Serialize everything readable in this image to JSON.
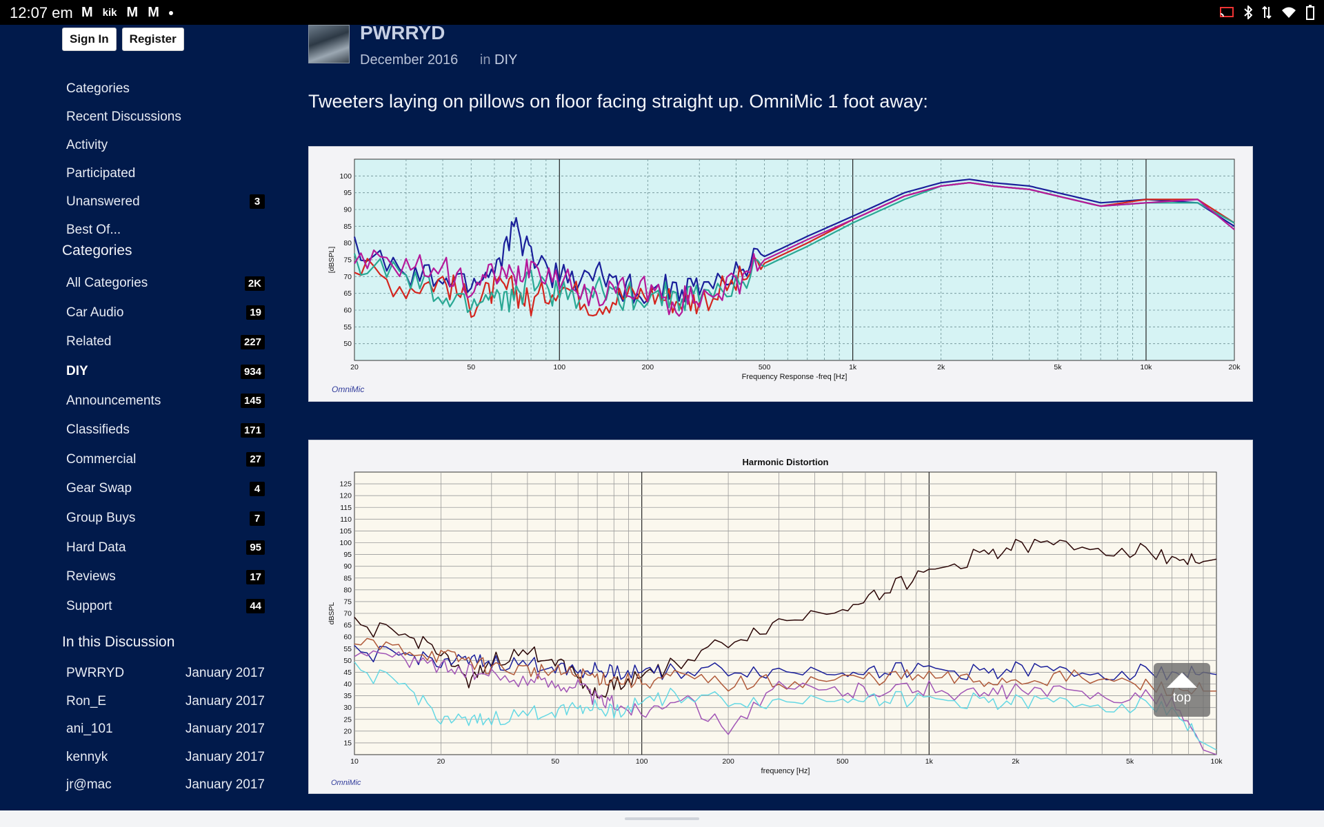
{
  "status_bar": {
    "time": "12:07 em",
    "left_icons": [
      "gmail-icon",
      "kik-icon",
      "gmail-icon",
      "gmail-icon",
      "dot-icon"
    ],
    "left_glyphs": [
      "M",
      "kik",
      "M",
      "M"
    ],
    "right_icons": [
      "cast-icon",
      "bluetooth-icon",
      "signal-icon",
      "wifi-icon",
      "battery-icon"
    ]
  },
  "auth": {
    "sign_in": "Sign In",
    "register": "Register"
  },
  "nav": [
    {
      "label": "Categories"
    },
    {
      "label": "Recent Discussions"
    },
    {
      "label": "Activity"
    },
    {
      "label": "Participated"
    },
    {
      "label": "Unanswered",
      "count": "3"
    },
    {
      "label": "Best Of..."
    }
  ],
  "categories": {
    "heading": "Categories",
    "items": [
      {
        "label": "All Categories",
        "count": "2K"
      },
      {
        "label": "Car Audio",
        "count": "19"
      },
      {
        "label": "Related",
        "count": "227"
      },
      {
        "label": "DIY",
        "count": "934",
        "active": true
      },
      {
        "label": "Announcements",
        "count": "145"
      },
      {
        "label": "Classifieds",
        "count": "171"
      },
      {
        "label": "Commercial",
        "count": "27"
      },
      {
        "label": "Gear Swap",
        "count": "4"
      },
      {
        "label": "Group Buys",
        "count": "7"
      },
      {
        "label": "Hard Data",
        "count": "95"
      },
      {
        "label": "Reviews",
        "count": "17"
      },
      {
        "label": "Support",
        "count": "44"
      }
    ]
  },
  "discussion": {
    "heading": "In this Discussion",
    "items": [
      {
        "user": "PWRRYD",
        "date": "January 2017"
      },
      {
        "user": "Ron_E",
        "date": "January 2017"
      },
      {
        "user": "ani_101",
        "date": "January 2017"
      },
      {
        "user": "kennyk",
        "date": "January 2017"
      },
      {
        "user": "jr@mac",
        "date": "January 2017"
      }
    ]
  },
  "post": {
    "author": "PWRRYD",
    "date": "December 2016",
    "in_label": "in",
    "category": "DIY",
    "text": "Tweeters laying on pillows on floor facing straight up.  OmniMic 1 foot away:"
  },
  "top_button": {
    "label": "top"
  },
  "colors": {
    "page_bg": "#011a4b",
    "chart1_bg": "#d6f3f4",
    "chart2_bg": "#fbf8ee",
    "blue": "#1a1f9a",
    "red": "#d4261f",
    "teal": "#2aa894",
    "magenta": "#b5199a",
    "dark": "#2a0505",
    "cyan": "#65d8e4",
    "purple": "#a155b6",
    "brown": "#b05a3a"
  },
  "chart_data": [
    {
      "type": "line",
      "title": "",
      "xlabel": "Frequency Response -freq [Hz]",
      "ylabel": "[dBSPL]",
      "watermark": "OmniMic",
      "x_scale": "log",
      "xlim": [
        20,
        20000
      ],
      "ylim": [
        45,
        105
      ],
      "xticks": [
        20,
        50,
        100,
        200,
        500,
        1000,
        2000,
        5000,
        10000,
        20000
      ],
      "xtick_labels": [
        "20",
        "50",
        "100",
        "200",
        "500",
        "1k",
        "2k",
        "5k",
        "10k",
        "20k"
      ],
      "yticks": [
        50,
        55,
        60,
        65,
        70,
        75,
        80,
        85,
        90,
        95,
        100
      ],
      "x": [
        20,
        30,
        40,
        50,
        60,
        70,
        80,
        100,
        130,
        160,
        200,
        250,
        300,
        400,
        500,
        700,
        1000,
        1500,
        2000,
        2500,
        3000,
        4000,
        5000,
        7000,
        10000,
        15000,
        20000
      ],
      "series": [
        {
          "color": "blue",
          "values": [
            79,
            70,
            69,
            68,
            72,
            84,
            77,
            69,
            71,
            67,
            66,
            67,
            66,
            71,
            76,
            82,
            88,
            95,
            98,
            99,
            98,
            97,
            95,
            92,
            93,
            92,
            85
          ]
        },
        {
          "color": "red",
          "values": [
            73,
            67,
            69,
            62,
            66,
            66,
            62,
            68,
            62,
            64,
            65,
            63,
            63,
            68,
            74,
            80,
            87,
            94,
            97,
            98,
            97,
            96,
            94,
            91,
            93,
            93,
            86
          ]
        },
        {
          "color": "teal",
          "values": [
            74,
            70,
            63,
            62,
            65,
            62,
            70,
            64,
            66,
            64,
            65,
            64,
            64,
            67,
            73,
            79,
            86,
            93,
            97,
            98,
            97,
            96,
            94,
            91,
            92,
            92,
            86
          ]
        },
        {
          "color": "magenta",
          "values": [
            75,
            72,
            72,
            67,
            70,
            69,
            74,
            69,
            65,
            66,
            66,
            62,
            64,
            68,
            75,
            81,
            87,
            94,
            97,
            98,
            97,
            96,
            94,
            91,
            92,
            93,
            84
          ]
        }
      ]
    },
    {
      "type": "line",
      "title": "Harmonic Distortion",
      "xlabel": "frequency [Hz]",
      "ylabel": "dBSPL",
      "watermark": "OmniMic",
      "x_scale": "log",
      "xlim": [
        10,
        10000
      ],
      "ylim": [
        10,
        130
      ],
      "xticks": [
        10,
        20,
        50,
        100,
        200,
        500,
        1000,
        2000,
        5000,
        10000
      ],
      "xtick_labels": [
        "10",
        "20",
        "50",
        "100",
        "200",
        "500",
        "1k",
        "2k",
        "5k",
        "10k"
      ],
      "yticks": [
        15,
        20,
        25,
        30,
        35,
        40,
        45,
        50,
        55,
        60,
        65,
        70,
        75,
        80,
        85,
        90,
        95,
        100,
        105,
        110,
        115,
        120,
        125
      ],
      "x": [
        10,
        15,
        20,
        25,
        30,
        40,
        50,
        60,
        70,
        80,
        100,
        130,
        200,
        300,
        500,
        700,
        1000,
        1500,
        2000,
        3000,
        5000,
        7000,
        9000,
        10000
      ],
      "series": [
        {
          "color": "dark",
          "values": [
            65,
            60,
            55,
            39,
            50,
            53,
            51,
            44,
            34,
            40,
            44,
            48,
            58,
            66,
            73,
            80,
            87,
            95,
            98,
            99,
            97,
            94,
            92,
            93
          ]
        },
        {
          "color": "blue",
          "values": [
            53,
            52,
            50,
            49,
            49,
            48,
            48,
            46,
            46,
            45,
            46,
            45,
            46,
            45,
            46,
            46,
            46,
            45,
            46,
            45,
            45,
            45,
            45,
            44
          ]
        },
        {
          "color": "brown",
          "values": [
            57,
            55,
            52,
            50,
            47,
            46,
            45,
            44,
            43,
            42,
            41,
            43,
            40,
            41,
            42,
            43,
            43,
            41,
            42,
            43,
            40,
            38,
            37,
            37
          ]
        },
        {
          "color": "purple",
          "values": [
            55,
            50,
            48,
            45,
            43,
            42,
            40,
            40,
            33,
            32,
            28,
            35,
            22,
            38,
            37,
            38,
            38,
            35,
            37,
            36,
            35,
            33,
            12,
            10
          ]
        },
        {
          "color": "cyan",
          "values": [
            46,
            39,
            26,
            23,
            25,
            27,
            29,
            31,
            30,
            28,
            33,
            35,
            33,
            32,
            35,
            34,
            33,
            33,
            32,
            32,
            31,
            30,
            15,
            12
          ]
        }
      ]
    }
  ]
}
